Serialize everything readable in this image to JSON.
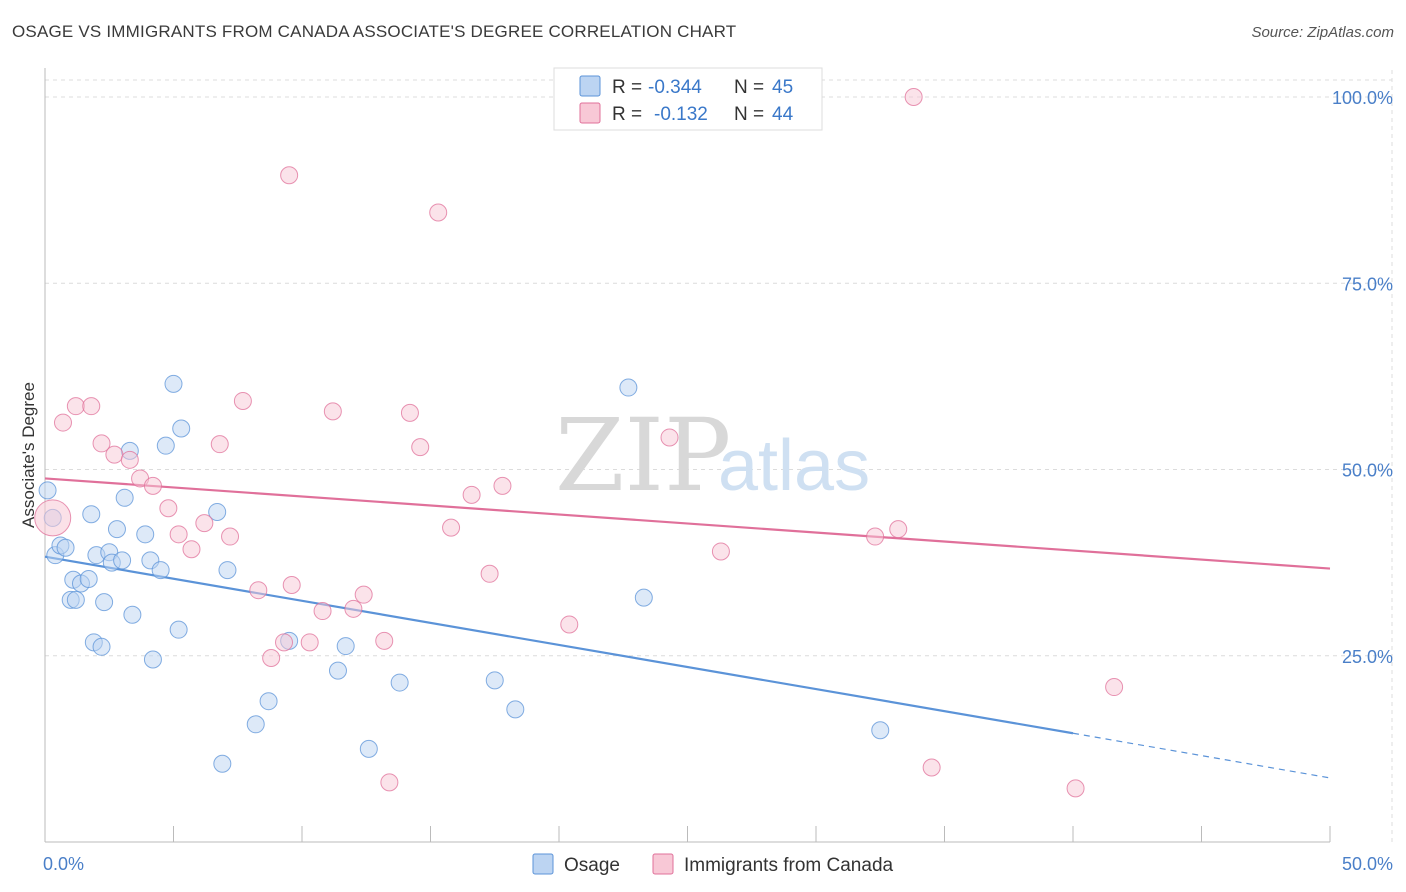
{
  "header": {
    "title": "OSAGE VS IMMIGRANTS FROM CANADA ASSOCIATE'S DEGREE CORRELATION CHART",
    "source": "Source: ZipAtlas.com"
  },
  "legend": {
    "rows": [
      {
        "r_label": "R =",
        "r_value": "-0.344",
        "n_label": "N =",
        "n_value": "45",
        "color": "#a8c8ef"
      },
      {
        "r_label": "R =",
        "r_value": "-0.132",
        "n_label": "N =",
        "n_value": "44",
        "color": "#f6b8c8"
      }
    ]
  },
  "watermark": {
    "zip": "ZIP",
    "atlas": "atlas"
  },
  "chart_data": {
    "type": "scatter",
    "ylabel": "Associate's Degree",
    "xlim": [
      0,
      50
    ],
    "ylim": [
      0,
      102
    ],
    "x_tick_labels": [
      "0.0%",
      "50.0%"
    ],
    "y_ticks": [
      {
        "value": 25,
        "label": "25.0%"
      },
      {
        "value": 50,
        "label": "50.0%"
      },
      {
        "value": 75,
        "label": "75.0%"
      },
      {
        "value": 100,
        "label": "100.0%"
      }
    ],
    "grid": true,
    "series": [
      {
        "name": "Osage",
        "color": "#5b93d8",
        "fill": "#bcd4f2",
        "trend": {
          "x0": 0,
          "y0": 38.3,
          "x1": 40,
          "y1": 14.6,
          "dash_to_x": 50,
          "dash_to_y": 8.6
        },
        "points": [
          [
            0.1,
            47.2
          ],
          [
            0.3,
            43.5
          ],
          [
            0.4,
            38.5
          ],
          [
            0.6,
            39.8
          ],
          [
            0.8,
            39.5
          ],
          [
            1.0,
            32.5
          ],
          [
            1.1,
            35.2
          ],
          [
            1.2,
            32.5
          ],
          [
            1.4,
            34.7
          ],
          [
            1.7,
            35.3
          ],
          [
            1.8,
            44.0
          ],
          [
            1.9,
            26.8
          ],
          [
            2.0,
            38.5
          ],
          [
            2.2,
            26.2
          ],
          [
            2.3,
            32.2
          ],
          [
            2.5,
            38.9
          ],
          [
            2.6,
            37.5
          ],
          [
            2.8,
            42.0
          ],
          [
            3.0,
            37.8
          ],
          [
            3.1,
            46.2
          ],
          [
            3.3,
            52.5
          ],
          [
            3.4,
            30.5
          ],
          [
            3.9,
            41.3
          ],
          [
            4.1,
            37.8
          ],
          [
            4.2,
            24.5
          ],
          [
            4.5,
            36.5
          ],
          [
            4.7,
            53.2
          ],
          [
            5.0,
            61.5
          ],
          [
            5.2,
            28.5
          ],
          [
            5.3,
            55.5
          ],
          [
            6.7,
            44.3
          ],
          [
            6.9,
            10.5
          ],
          [
            7.1,
            36.5
          ],
          [
            8.2,
            15.8
          ],
          [
            8.7,
            18.9
          ],
          [
            9.5,
            27.0
          ],
          [
            11.4,
            23.0
          ],
          [
            11.7,
            26.3
          ],
          [
            12.6,
            12.5
          ],
          [
            13.8,
            21.4
          ],
          [
            17.5,
            21.7
          ],
          [
            18.3,
            17.8
          ],
          [
            22.7,
            61.0
          ],
          [
            23.3,
            32.8
          ],
          [
            32.5,
            15.0
          ]
        ]
      },
      {
        "name": "Immigrants from Canada",
        "color": "#e0709a",
        "fill": "#f8c8d6",
        "trend": {
          "x0": 0,
          "y0": 48.8,
          "x1": 50,
          "y1": 36.7
        },
        "points": [
          [
            0.3,
            43.5
          ],
          [
            0.7,
            56.3
          ],
          [
            1.2,
            58.5
          ],
          [
            1.8,
            58.5
          ],
          [
            2.2,
            53.5
          ],
          [
            2.7,
            52.0
          ],
          [
            3.3,
            51.3
          ],
          [
            3.7,
            48.8
          ],
          [
            4.2,
            47.8
          ],
          [
            4.8,
            44.8
          ],
          [
            5.2,
            41.3
          ],
          [
            5.7,
            39.3
          ],
          [
            6.2,
            42.8
          ],
          [
            6.8,
            53.4
          ],
          [
            7.2,
            41.0
          ],
          [
            7.7,
            59.2
          ],
          [
            8.3,
            33.8
          ],
          [
            8.8,
            24.7
          ],
          [
            9.3,
            26.8
          ],
          [
            9.5,
            89.5
          ],
          [
            9.6,
            34.5
          ],
          [
            10.3,
            26.8
          ],
          [
            10.8,
            31.0
          ],
          [
            11.2,
            57.8
          ],
          [
            12.0,
            31.3
          ],
          [
            12.4,
            33.2
          ],
          [
            13.2,
            27.0
          ],
          [
            13.4,
            8.0
          ],
          [
            14.2,
            57.6
          ],
          [
            14.6,
            53.0
          ],
          [
            15.3,
            84.5
          ],
          [
            15.8,
            42.2
          ],
          [
            16.6,
            46.6
          ],
          [
            17.3,
            36.0
          ],
          [
            17.8,
            47.8
          ],
          [
            20.4,
            29.2
          ],
          [
            24.3,
            54.3
          ],
          [
            26.3,
            39.0
          ],
          [
            32.3,
            41.0
          ],
          [
            33.2,
            42.0
          ],
          [
            33.8,
            100.0
          ],
          [
            34.5,
            10.0
          ],
          [
            40.1,
            7.2
          ],
          [
            41.6,
            20.8
          ]
        ]
      }
    ]
  }
}
